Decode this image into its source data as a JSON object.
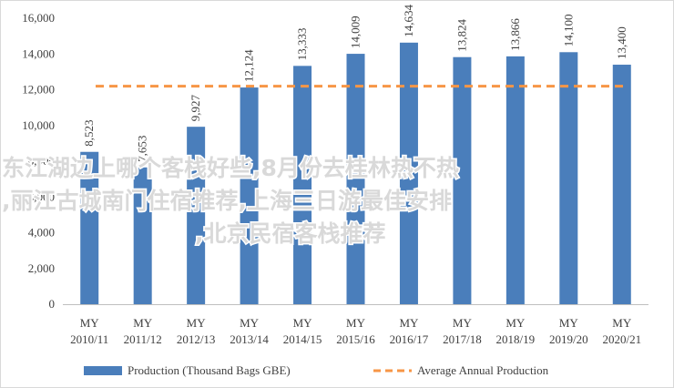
{
  "chart_data": {
    "type": "bar",
    "categories": [
      "MY 2010/11",
      "MY 2011/12",
      "MY 2012/13",
      "MY 2013/14",
      "MY 2014/15",
      "MY 2015/16",
      "MY 2016/17",
      "MY 2017/18",
      "MY 2018/19",
      "MY 2019/20",
      "MY 2020/21"
    ],
    "category_lines": [
      [
        "MY",
        "2010/11"
      ],
      [
        "MY",
        "2011/12"
      ],
      [
        "MY",
        "2012/13"
      ],
      [
        "MY",
        "2013/14"
      ],
      [
        "MY",
        "2014/15"
      ],
      [
        "MY",
        "2015/16"
      ],
      [
        "MY",
        "2016/17"
      ],
      [
        "MY",
        "2017/18"
      ],
      [
        "MY",
        "2018/19"
      ],
      [
        "MY",
        "2019/20"
      ],
      [
        "MY",
        "2020/21"
      ]
    ],
    "series": [
      {
        "name": "Production (Thousand Bags GBE)",
        "type": "bar",
        "color": "#4a7ebb",
        "values": [
          8523,
          7653,
          9927,
          12124,
          13333,
          14009,
          14634,
          13824,
          13866,
          14100,
          13400
        ],
        "labels": [
          "8,523",
          "7,653",
          "9,927",
          "12,124",
          "13,333",
          "14,009",
          "14,634",
          "13,824",
          "13,866",
          "14,100",
          "13,400"
        ]
      },
      {
        "name": "Average Annual Production",
        "type": "line",
        "style": "dashed",
        "color": "#f79646",
        "value": 12200
      }
    ],
    "ylim": [
      0,
      16000
    ],
    "yticks": [
      0,
      2000,
      4000,
      6000,
      8000,
      10000,
      12000,
      14000,
      16000
    ],
    "ytick_labels": [
      "0",
      "2,000",
      "4,000",
      "6,000",
      "8,000",
      "10,000",
      "12,000",
      "14,000",
      "16,000"
    ],
    "grid": false,
    "legend_position": "bottom"
  },
  "overlay": {
    "lines": [
      "东江湖边上哪个客栈好些,8月份去桂林热不热",
      ",丽江古城南门住宿推荐,上海三日游最佳安排",
      ",北京民宿客栈推荐"
    ]
  }
}
